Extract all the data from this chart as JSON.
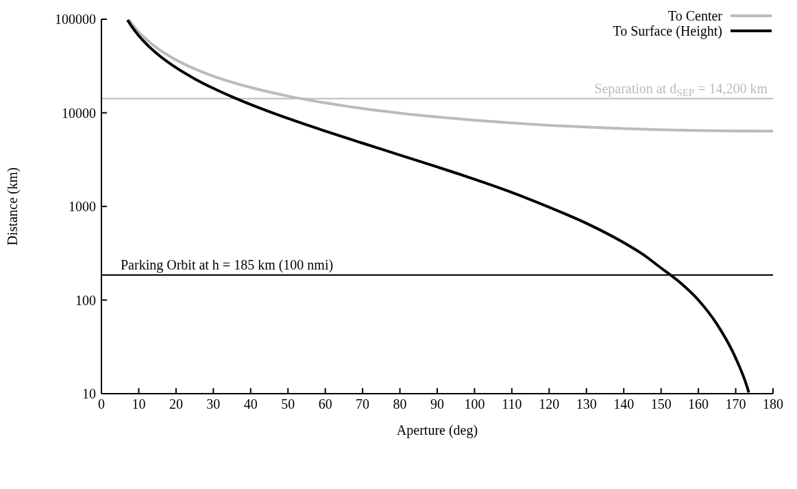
{
  "chart_data": {
    "type": "line",
    "xlabel": "Aperture (deg)",
    "ylabel": "Distance (km)",
    "log": "y",
    "xlim": [
      0,
      180
    ],
    "xticks": [
      0,
      10,
      20,
      30,
      40,
      50,
      60,
      70,
      80,
      90,
      100,
      110,
      120,
      130,
      140,
      150,
      160,
      170,
      180
    ],
    "ylim": [
      10,
      100000
    ],
    "yticks": [
      10,
      100,
      1000,
      10000,
      100000
    ],
    "legend": "top right",
    "marker": "none",
    "line_style": "solid",
    "series": [
      {
        "name": "To Center",
        "color": "#bbbbbb",
        "x": [
          7.4,
          8,
          10,
          12,
          15,
          20,
          25,
          30,
          35,
          40,
          50,
          60,
          70,
          80,
          90,
          100,
          110,
          120,
          130,
          140,
          150,
          160,
          170,
          180
        ],
        "values": [
          98840,
          91430,
          73180,
          61020,
          48860,
          36730,
          29470,
          24640,
          21210,
          18650,
          15090,
          12760,
          11120,
          9920,
          9020,
          8330,
          7790,
          7360,
          7040,
          6790,
          6600,
          6480,
          6400,
          6378
        ]
      },
      {
        "name": "To Surface (Height)",
        "color": "#000000",
        "x": [
          7,
          8,
          10,
          12,
          15,
          20,
          25,
          30,
          35,
          40,
          50,
          60,
          70,
          80,
          90,
          100,
          110,
          120,
          130,
          140,
          145,
          150,
          155,
          160,
          165,
          170,
          173,
          173.5
        ],
        "values": [
          98090,
          85050,
          66800,
          54640,
          42480,
          30350,
          23090,
          18260,
          14830,
          12270,
          8710,
          6380,
          4740,
          3540,
          2640,
          1950,
          1410,
          980,
          660,
          410,
          310,
          220,
          155,
          100,
          55,
          24,
          12,
          10.3
        ]
      }
    ],
    "ref_lines": [
      {
        "axis": "y",
        "value": 14200,
        "label": "Separation at d$_{SEP}$ = 14,200 km",
        "color": "#bbbbbb",
        "line_style": "solid"
      },
      {
        "axis": "y",
        "value": 185,
        "label": "Parking Orbit at h = 185 km (100 nmi)",
        "color": "#000000",
        "line_style": "solid"
      }
    ]
  }
}
